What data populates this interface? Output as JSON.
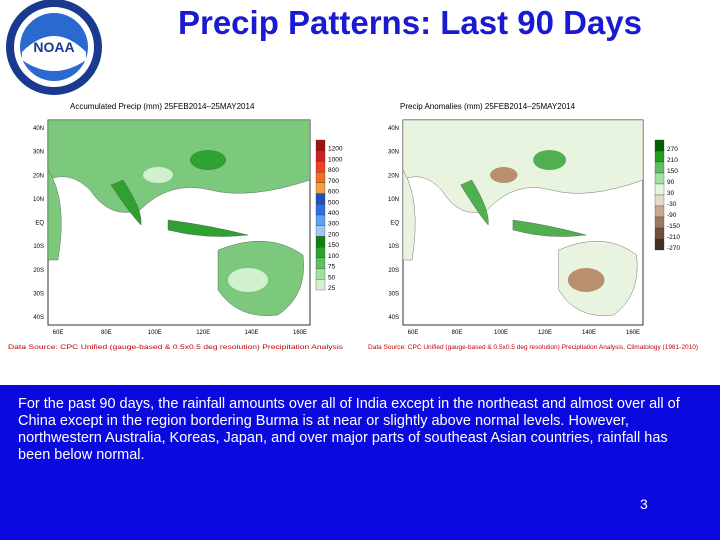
{
  "header": {
    "title": "Precip Patterns: Last 90 Days",
    "logo_text": "NOAA"
  },
  "maps": [
    {
      "title": "Accumulated Precip (mm) 25FEB2014–25MAY2014",
      "lat_labels": [
        "40N",
        "30N",
        "20N",
        "10N",
        "EQ",
        "10S",
        "20S",
        "30S",
        "40S"
      ],
      "lon_labels": [
        "60E",
        "80E",
        "100E",
        "120E",
        "140E",
        "160E"
      ],
      "legend": [
        {
          "value": 1200,
          "color": "#a01010"
        },
        {
          "value": 1000,
          "color": "#d02020"
        },
        {
          "value": 800,
          "color": "#f04020"
        },
        {
          "value": 700,
          "color": "#f07020"
        },
        {
          "value": 600,
          "color": "#f0a040"
        },
        {
          "value": 500,
          "color": "#2050c0"
        },
        {
          "value": 400,
          "color": "#3070e0"
        },
        {
          "value": 300,
          "color": "#60a0f0"
        },
        {
          "value": 200,
          "color": "#a0c8f0"
        },
        {
          "value": 150,
          "color": "#108010"
        },
        {
          "value": 100,
          "color": "#30a030"
        },
        {
          "value": 75,
          "color": "#60c060"
        },
        {
          "value": 50,
          "color": "#a0e0a0"
        },
        {
          "value": 25,
          "color": "#d0f0d0"
        }
      ],
      "source": "Data Source: CPC Unified (gauge-based & 0.5x0.5 deg resolution) Precipitation Analysis"
    },
    {
      "title": "Precip Anomalies (mm) 25FEB2014–25MAY2014",
      "lat_labels": [
        "40N",
        "30N",
        "20N",
        "10N",
        "EQ",
        "10S",
        "20S",
        "30S",
        "40S"
      ],
      "lon_labels": [
        "60E",
        "80E",
        "100E",
        "120E",
        "140E",
        "160E"
      ],
      "legend": [
        {
          "value": 270,
          "color": "#006000"
        },
        {
          "value": 210,
          "color": "#20a020"
        },
        {
          "value": 150,
          "color": "#60c060"
        },
        {
          "value": 90,
          "color": "#a0e0a0"
        },
        {
          "value": 30,
          "color": "#e0f8e0"
        },
        {
          "value": -30,
          "color": "#e8d8c8"
        },
        {
          "value": -90,
          "color": "#c8a890"
        },
        {
          "value": -150,
          "color": "#a07860"
        },
        {
          "value": -210,
          "color": "#705040"
        },
        {
          "value": -270,
          "color": "#403020"
        }
      ],
      "source": "Data Source: CPC Unified (gauge-based & 0.5x0.5 deg resolution) Precipitation Analysis, Climatology (1981-2010)"
    }
  ],
  "body": {
    "text": "For the past 90 days, the rainfall amounts over all of India except in the northeast and almost over all of China except in the region bordering Burma is at near or slightly above normal levels. However, northwestern Australia, Koreas, Japan, and over major parts of southeast Asian countries, rainfall has been below normal.",
    "page_number": "3"
  }
}
